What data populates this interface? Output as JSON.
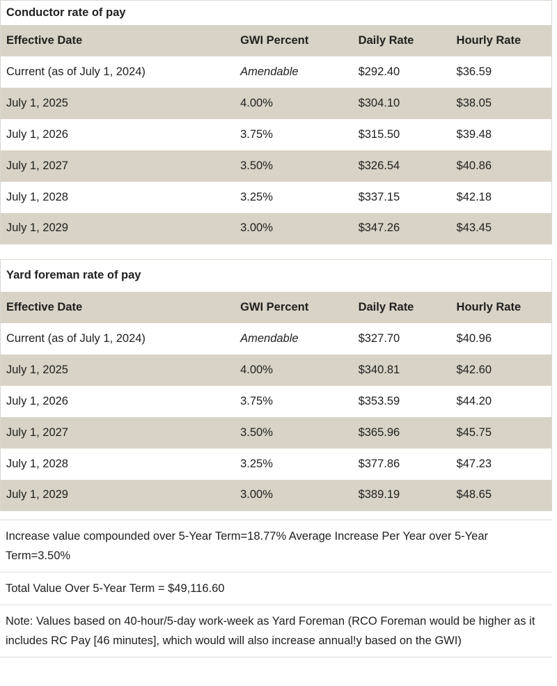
{
  "colors": {
    "row_shade": "#d8d3c6",
    "table_border": "#dad7d0",
    "divider": "#dcdcdc",
    "text": "#202020"
  },
  "tables": [
    {
      "title": "Conductor rate of pay",
      "columns": [
        "Effective Date",
        "GWI Percent",
        "Daily Rate",
        "Hourly Rate"
      ],
      "rows": [
        [
          "Current (as of July 1, 2024)",
          "Amendable",
          "$292.40",
          "$36.59"
        ],
        [
          "July 1, 2025",
          "4.00%",
          "$304.10",
          "$38.05"
        ],
        [
          "July 1, 2026",
          "3.75%",
          "$315.50",
          "$39.48"
        ],
        [
          "July 1, 2027",
          "3.50%",
          "$326.54",
          "$40.86"
        ],
        [
          "July 1, 2028",
          "3.25%",
          "$337.15",
          "$42.18"
        ],
        [
          "July 1, 2029",
          "3.00%",
          "$347.26",
          "$43.45"
        ]
      ]
    },
    {
      "title": "Yard foreman rate of pay",
      "columns": [
        "Effective Date",
        "GWI Percent",
        "Daily Rate",
        "Hourly Rate"
      ],
      "rows": [
        [
          "Current (as of July 1, 2024)",
          "Amendable",
          "$327.70",
          "$40.96"
        ],
        [
          "July 1, 2025",
          "4.00%",
          "$340.81",
          "$42.60"
        ],
        [
          "July 1, 2026",
          "3.75%",
          "$353.59",
          "$44.20"
        ],
        [
          "July 1, 2027",
          "3.50%",
          "$365.96",
          "$45.75"
        ],
        [
          "July 1, 2028",
          "3.25%",
          "$377.86",
          "$47.23"
        ],
        [
          "July 1, 2029",
          "3.00%",
          "$389.19",
          "$48.65"
        ]
      ]
    }
  ],
  "summary": {
    "compounded": "Increase value compounded over 5-Year Term=18.77% Average Increase Per Year over 5-Year Term=3.50%",
    "total_value": "Total Value Over 5-Year Term = $49,116.60",
    "note": "Note: Values based on 40-hour/5-day work-week as Yard Foreman (RCO Foreman would be higher as it includes RC Pay [46 minutes], which would will also increase annual!y based on the GWI)"
  }
}
